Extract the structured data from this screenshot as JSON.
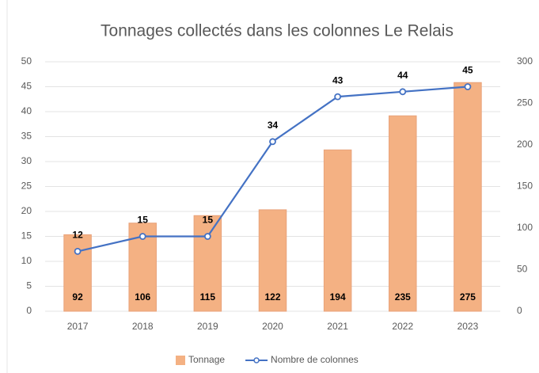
{
  "chart_data": {
    "type": "bar_line",
    "title": "Tonnages collectés dans les colonnes Le Relais",
    "categories": [
      "2017",
      "2018",
      "2019",
      "2020",
      "2021",
      "2022",
      "2023"
    ],
    "series": [
      {
        "name": "Tonnage",
        "type": "bar",
        "axis": "y2",
        "color": "#f4b183",
        "values": [
          92,
          106,
          115,
          122,
          194,
          235,
          275
        ]
      },
      {
        "name": "Nombre de colonnes",
        "type": "line",
        "axis": "y",
        "color": "#4472c4",
        "values": [
          12,
          15,
          15,
          34,
          43,
          44,
          45
        ]
      }
    ],
    "ylim": [
      0,
      50
    ],
    "yticks": [
      0,
      5,
      10,
      15,
      20,
      25,
      30,
      35,
      40,
      45,
      50
    ],
    "y2lim": [
      0,
      300
    ],
    "y2ticks": [
      0,
      50,
      100,
      150,
      200,
      250,
      300
    ],
    "grid": true,
    "legend": "bottom"
  }
}
